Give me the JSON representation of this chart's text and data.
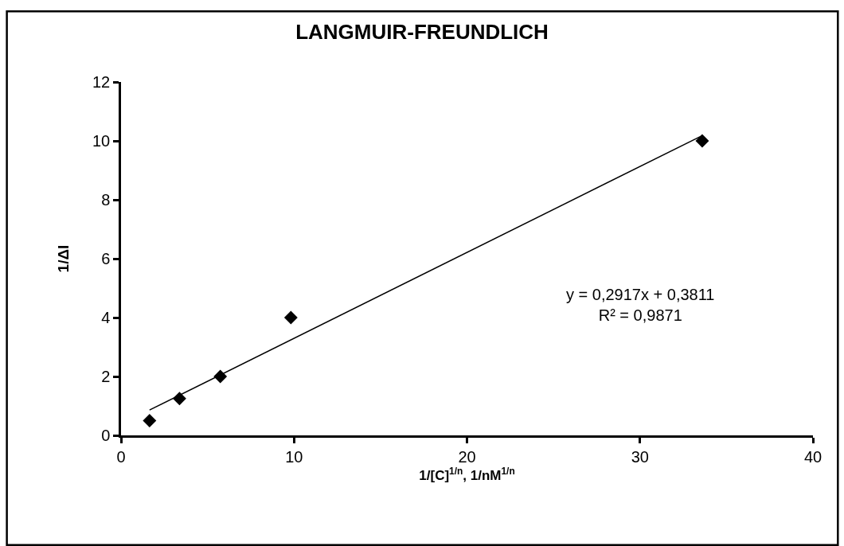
{
  "chart_data": {
    "type": "scatter",
    "title": "LANGMUIR-FREUNDLICH",
    "xlabel": "1/[C]$^{1/n}$, 1/nM$^{1/n}$",
    "ylabel": "1/ΔI",
    "series": [
      {
        "color": "#000000",
        "marker": "diamond",
        "x": [
          1.65,
          3.38,
          5.74,
          9.82,
          33.6
        ],
        "values": [
          0.5,
          1.25,
          2.0,
          4.0,
          10.0
        ]
      },
      {
        "type": "line",
        "color": "#000000",
        "line_style": "solid",
        "x": [
          1.65,
          33.6
        ],
        "values": [
          0.86,
          10.18
        ]
      }
    ],
    "annotations": [
      "y = 0,2917x + 0,3811\nR² = 0,9871"
    ],
    "xlim": [
      0,
      40
    ],
    "xticks": [
      0,
      10,
      20,
      30,
      40
    ],
    "ylim": [
      0,
      12
    ],
    "yticks": [
      0,
      2,
      4,
      6,
      8,
      10,
      12
    ]
  }
}
